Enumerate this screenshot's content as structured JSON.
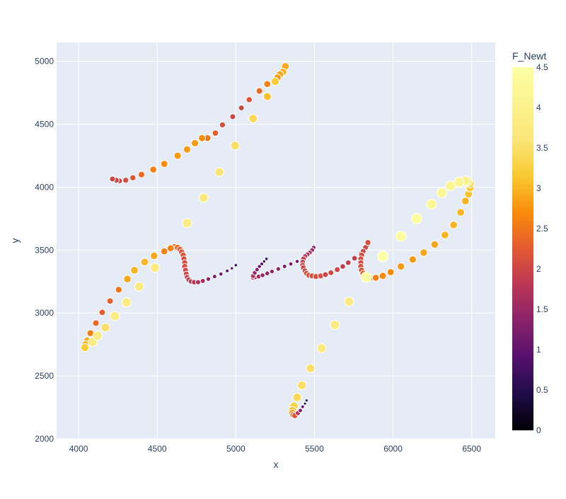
{
  "chart_data": {
    "type": "scatter",
    "xlabel": "x",
    "ylabel": "y",
    "xlim": [
      3860,
      6650
    ],
    "ylim": [
      2000,
      5150
    ],
    "x_ticks": [
      4000,
      4500,
      5000,
      5500,
      6000,
      6500
    ],
    "y_ticks": [
      2000,
      2500,
      3000,
      3500,
      4000,
      4500,
      5000
    ],
    "colorbar": {
      "title": "F_Newt",
      "range": [
        0,
        4.5
      ],
      "ticks": [
        0,
        0.5,
        1,
        1.5,
        2,
        2.5,
        3,
        3.5,
        4,
        4.5
      ],
      "colorscale": "inferno"
    },
    "colors": {
      "plot_bg": "#e5ecf6",
      "grid": "#ffffff",
      "text": "#2a3f5f",
      "marker_outline": "#ffffff"
    },
    "points": [
      [
        5315,
        4960,
        2.9
      ],
      [
        5300,
        4915,
        3.0
      ],
      [
        5280,
        4895,
        2.9
      ],
      [
        5265,
        4870,
        2.8
      ],
      [
        5200,
        4820,
        2.6
      ],
      [
        5150,
        4765,
        2.4
      ],
      [
        5085,
        4695,
        2.2
      ],
      [
        5035,
        4630,
        2.0
      ],
      [
        4980,
        4560,
        2.0
      ],
      [
        4915,
        4495,
        2.1
      ],
      [
        4870,
        4430,
        2.3
      ],
      [
        4820,
        4390,
        2.5
      ],
      [
        4785,
        4390,
        2.7
      ],
      [
        4740,
        4350,
        2.8
      ],
      [
        4690,
        4300,
        2.8
      ],
      [
        4630,
        4250,
        2.8
      ],
      [
        4545,
        4185,
        2.7
      ],
      [
        4475,
        4140,
        2.6
      ],
      [
        4400,
        4100,
        2.4
      ],
      [
        4345,
        4075,
        2.2
      ],
      [
        4300,
        4055,
        2.1
      ],
      [
        4260,
        4050,
        2.0
      ],
      [
        4240,
        4055,
        2.0
      ],
      [
        4215,
        4065,
        2.0
      ],
      [
        5200,
        4720,
        3.1
      ],
      [
        5250,
        4840,
        3.2
      ],
      [
        5110,
        4545,
        3.4
      ],
      [
        4995,
        4330,
        3.5
      ],
      [
        4895,
        4120,
        3.6
      ],
      [
        4795,
        3915,
        3.7
      ],
      [
        4690,
        3715,
        3.8
      ],
      [
        4610,
        3525,
        2.5
      ],
      [
        4630,
        3520,
        2.4
      ],
      [
        4645,
        3505,
        2.3
      ],
      [
        4655,
        3485,
        2.2
      ],
      [
        4665,
        3460,
        2.2
      ],
      [
        4670,
        3430,
        2.1
      ],
      [
        4675,
        3400,
        2.1
      ],
      [
        4675,
        3370,
        2.1
      ],
      [
        4680,
        3340,
        2.0
      ],
      [
        4685,
        3310,
        2.0
      ],
      [
        4690,
        3285,
        1.9
      ],
      [
        4700,
        3265,
        1.9
      ],
      [
        4715,
        3250,
        1.8
      ],
      [
        4735,
        3245,
        1.8
      ],
      [
        4760,
        3245,
        1.7
      ],
      [
        4790,
        3255,
        1.6
      ],
      [
        4825,
        3270,
        1.4
      ],
      [
        4865,
        3290,
        1.3
      ],
      [
        4905,
        3310,
        1.1
      ],
      [
        4945,
        3335,
        0.9
      ],
      [
        4975,
        3355,
        0.7
      ],
      [
        5000,
        3380,
        0.5
      ],
      [
        4585,
        3515,
        2.6
      ],
      [
        4545,
        3490,
        2.6
      ],
      [
        4480,
        3455,
        2.9
      ],
      [
        4420,
        3405,
        3.0
      ],
      [
        4355,
        3340,
        3.0
      ],
      [
        4310,
        3270,
        2.9
      ],
      [
        4255,
        3185,
        2.5
      ],
      [
        4200,
        3095,
        2.3
      ],
      [
        4150,
        3005,
        2.3
      ],
      [
        4110,
        2920,
        2.4
      ],
      [
        4075,
        2840,
        2.6
      ],
      [
        4055,
        2780,
        2.9
      ],
      [
        4045,
        2750,
        3.0
      ],
      [
        4040,
        2725,
        3.2
      ],
      [
        4090,
        2770,
        3.8
      ],
      [
        4120,
        2820,
        3.8
      ],
      [
        4170,
        2885,
        3.5
      ],
      [
        4230,
        2975,
        3.8
      ],
      [
        4305,
        3085,
        3.8
      ],
      [
        4385,
        3210,
        3.7
      ],
      [
        4485,
        3360,
        3.7
      ],
      [
        5110,
        3280,
        1.6
      ],
      [
        5125,
        3285,
        1.6
      ],
      [
        5145,
        3290,
        1.6
      ],
      [
        5170,
        3300,
        1.5
      ],
      [
        5200,
        3315,
        1.5
      ],
      [
        5230,
        3330,
        1.4
      ],
      [
        5270,
        3350,
        1.4
      ],
      [
        5310,
        3370,
        1.3
      ],
      [
        5350,
        3390,
        1.2
      ],
      [
        5390,
        3410,
        1.1
      ],
      [
        5420,
        3425,
        1.0
      ],
      [
        5450,
        3445,
        0.8
      ],
      [
        5110,
        3295,
        1.7
      ],
      [
        5120,
        3320,
        1.5
      ],
      [
        5135,
        3345,
        1.3
      ],
      [
        5150,
        3370,
        1.1
      ],
      [
        5165,
        3390,
        0.9
      ],
      [
        5180,
        3410,
        0.7
      ],
      [
        5195,
        3430,
        0.5
      ],
      [
        5495,
        3520,
        1.4
      ],
      [
        5485,
        3500,
        1.5
      ],
      [
        5470,
        3480,
        1.6
      ],
      [
        5455,
        3465,
        1.7
      ],
      [
        5440,
        3450,
        1.8
      ],
      [
        5430,
        3430,
        1.9
      ],
      [
        5425,
        3405,
        1.9
      ],
      [
        5425,
        3380,
        2.0
      ],
      [
        5430,
        3360,
        2.0
      ],
      [
        5440,
        3335,
        2.0
      ],
      [
        5450,
        3315,
        2.1
      ],
      [
        5465,
        3300,
        2.1
      ],
      [
        5485,
        3295,
        2.1
      ],
      [
        5510,
        3290,
        2.1
      ],
      [
        5540,
        3295,
        2.1
      ],
      [
        5570,
        3305,
        2.0
      ],
      [
        5605,
        3320,
        2.0
      ],
      [
        5645,
        3345,
        2.0
      ],
      [
        5680,
        3370,
        1.9
      ],
      [
        5715,
        3400,
        1.9
      ],
      [
        5755,
        3435,
        1.9
      ],
      [
        5795,
        3470,
        1.9
      ],
      [
        5820,
        3510,
        2.0
      ],
      [
        5835,
        3540,
        2.0
      ],
      [
        5840,
        3560,
        2.1
      ],
      [
        5825,
        3520,
        2.0
      ],
      [
        5810,
        3490,
        2.0
      ],
      [
        5800,
        3460,
        2.1
      ],
      [
        5795,
        3430,
        2.1
      ],
      [
        5795,
        3400,
        2.1
      ],
      [
        5795,
        3370,
        2.1
      ],
      [
        5800,
        3340,
        2.2
      ],
      [
        5810,
        3315,
        2.3
      ],
      [
        5830,
        3295,
        2.4
      ],
      [
        5855,
        3280,
        2.5
      ],
      [
        5890,
        3280,
        2.6
      ],
      [
        5935,
        3295,
        2.7
      ],
      [
        5985,
        3325,
        2.7
      ],
      [
        6050,
        3370,
        2.8
      ],
      [
        6125,
        3425,
        2.8
      ],
      [
        6195,
        3480,
        2.9
      ],
      [
        6265,
        3545,
        2.9
      ],
      [
        6330,
        3620,
        3.0
      ],
      [
        6385,
        3700,
        3.0
      ],
      [
        6430,
        3800,
        3.0
      ],
      [
        6460,
        3890,
        3.0
      ],
      [
        6480,
        3945,
        3.1
      ],
      [
        6490,
        3995,
        3.2
      ],
      [
        6490,
        4030,
        3.4
      ],
      [
        6475,
        4045,
        3.8
      ],
      [
        6460,
        4050,
        4.0
      ],
      [
        6420,
        4040,
        4.2
      ],
      [
        6365,
        4010,
        4.2
      ],
      [
        6310,
        3955,
        4.2
      ],
      [
        6245,
        3865,
        4.2
      ],
      [
        6150,
        3750,
        4.4
      ],
      [
        6050,
        3610,
        4.4
      ],
      [
        5935,
        3450,
        4.5
      ],
      [
        5830,
        3285,
        4.5
      ],
      [
        5720,
        3090,
        3.8
      ],
      [
        5630,
        2905,
        3.8
      ],
      [
        5545,
        2720,
        3.7
      ],
      [
        5475,
        2560,
        3.5
      ],
      [
        5420,
        2425,
        3.5
      ],
      [
        5390,
        2330,
        3.4
      ],
      [
        5370,
        2260,
        3.3
      ],
      [
        5360,
        2225,
        3.1
      ],
      [
        5360,
        2205,
        2.8
      ],
      [
        5365,
        2190,
        2.4
      ],
      [
        5375,
        2185,
        2.2
      ],
      [
        5395,
        2205,
        1.7
      ],
      [
        5410,
        2225,
        1.3
      ],
      [
        5425,
        2255,
        0.9
      ],
      [
        5440,
        2280,
        0.6
      ],
      [
        5450,
        2305,
        0.4
      ]
    ]
  }
}
